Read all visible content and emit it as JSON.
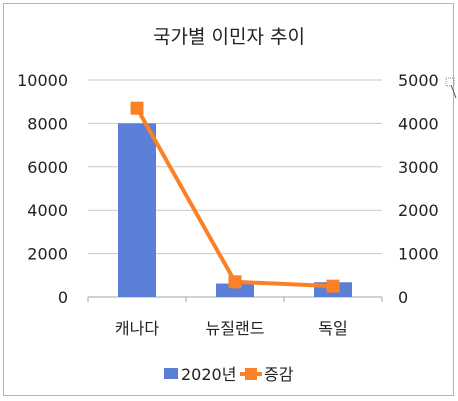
{
  "chart_data": {
    "type": "bar",
    "title": "국가별 이민자 추이",
    "categories": [
      "캐나다",
      "뉴질랜드",
      "독일"
    ],
    "series": [
      {
        "name": "2020년",
        "type": "bar",
        "axis": "left",
        "color": "#5b7fd6",
        "values": [
          8000,
          620,
          680
        ]
      },
      {
        "name": "증감",
        "type": "line",
        "axis": "right",
        "color": "#fb8128",
        "marker": "square",
        "values": [
          4350,
          350,
          250
        ]
      }
    ],
    "y_left": {
      "min": 0,
      "max": 10000,
      "ticks": [
        "0",
        "2000",
        "4000",
        "6000",
        "8000",
        "10000"
      ]
    },
    "y_right": {
      "min": 0,
      "max": 5000,
      "ticks": [
        "0",
        "1000",
        "2000",
        "3000",
        "4000",
        "5000"
      ]
    },
    "grid": true,
    "legend_position": "bottom"
  }
}
